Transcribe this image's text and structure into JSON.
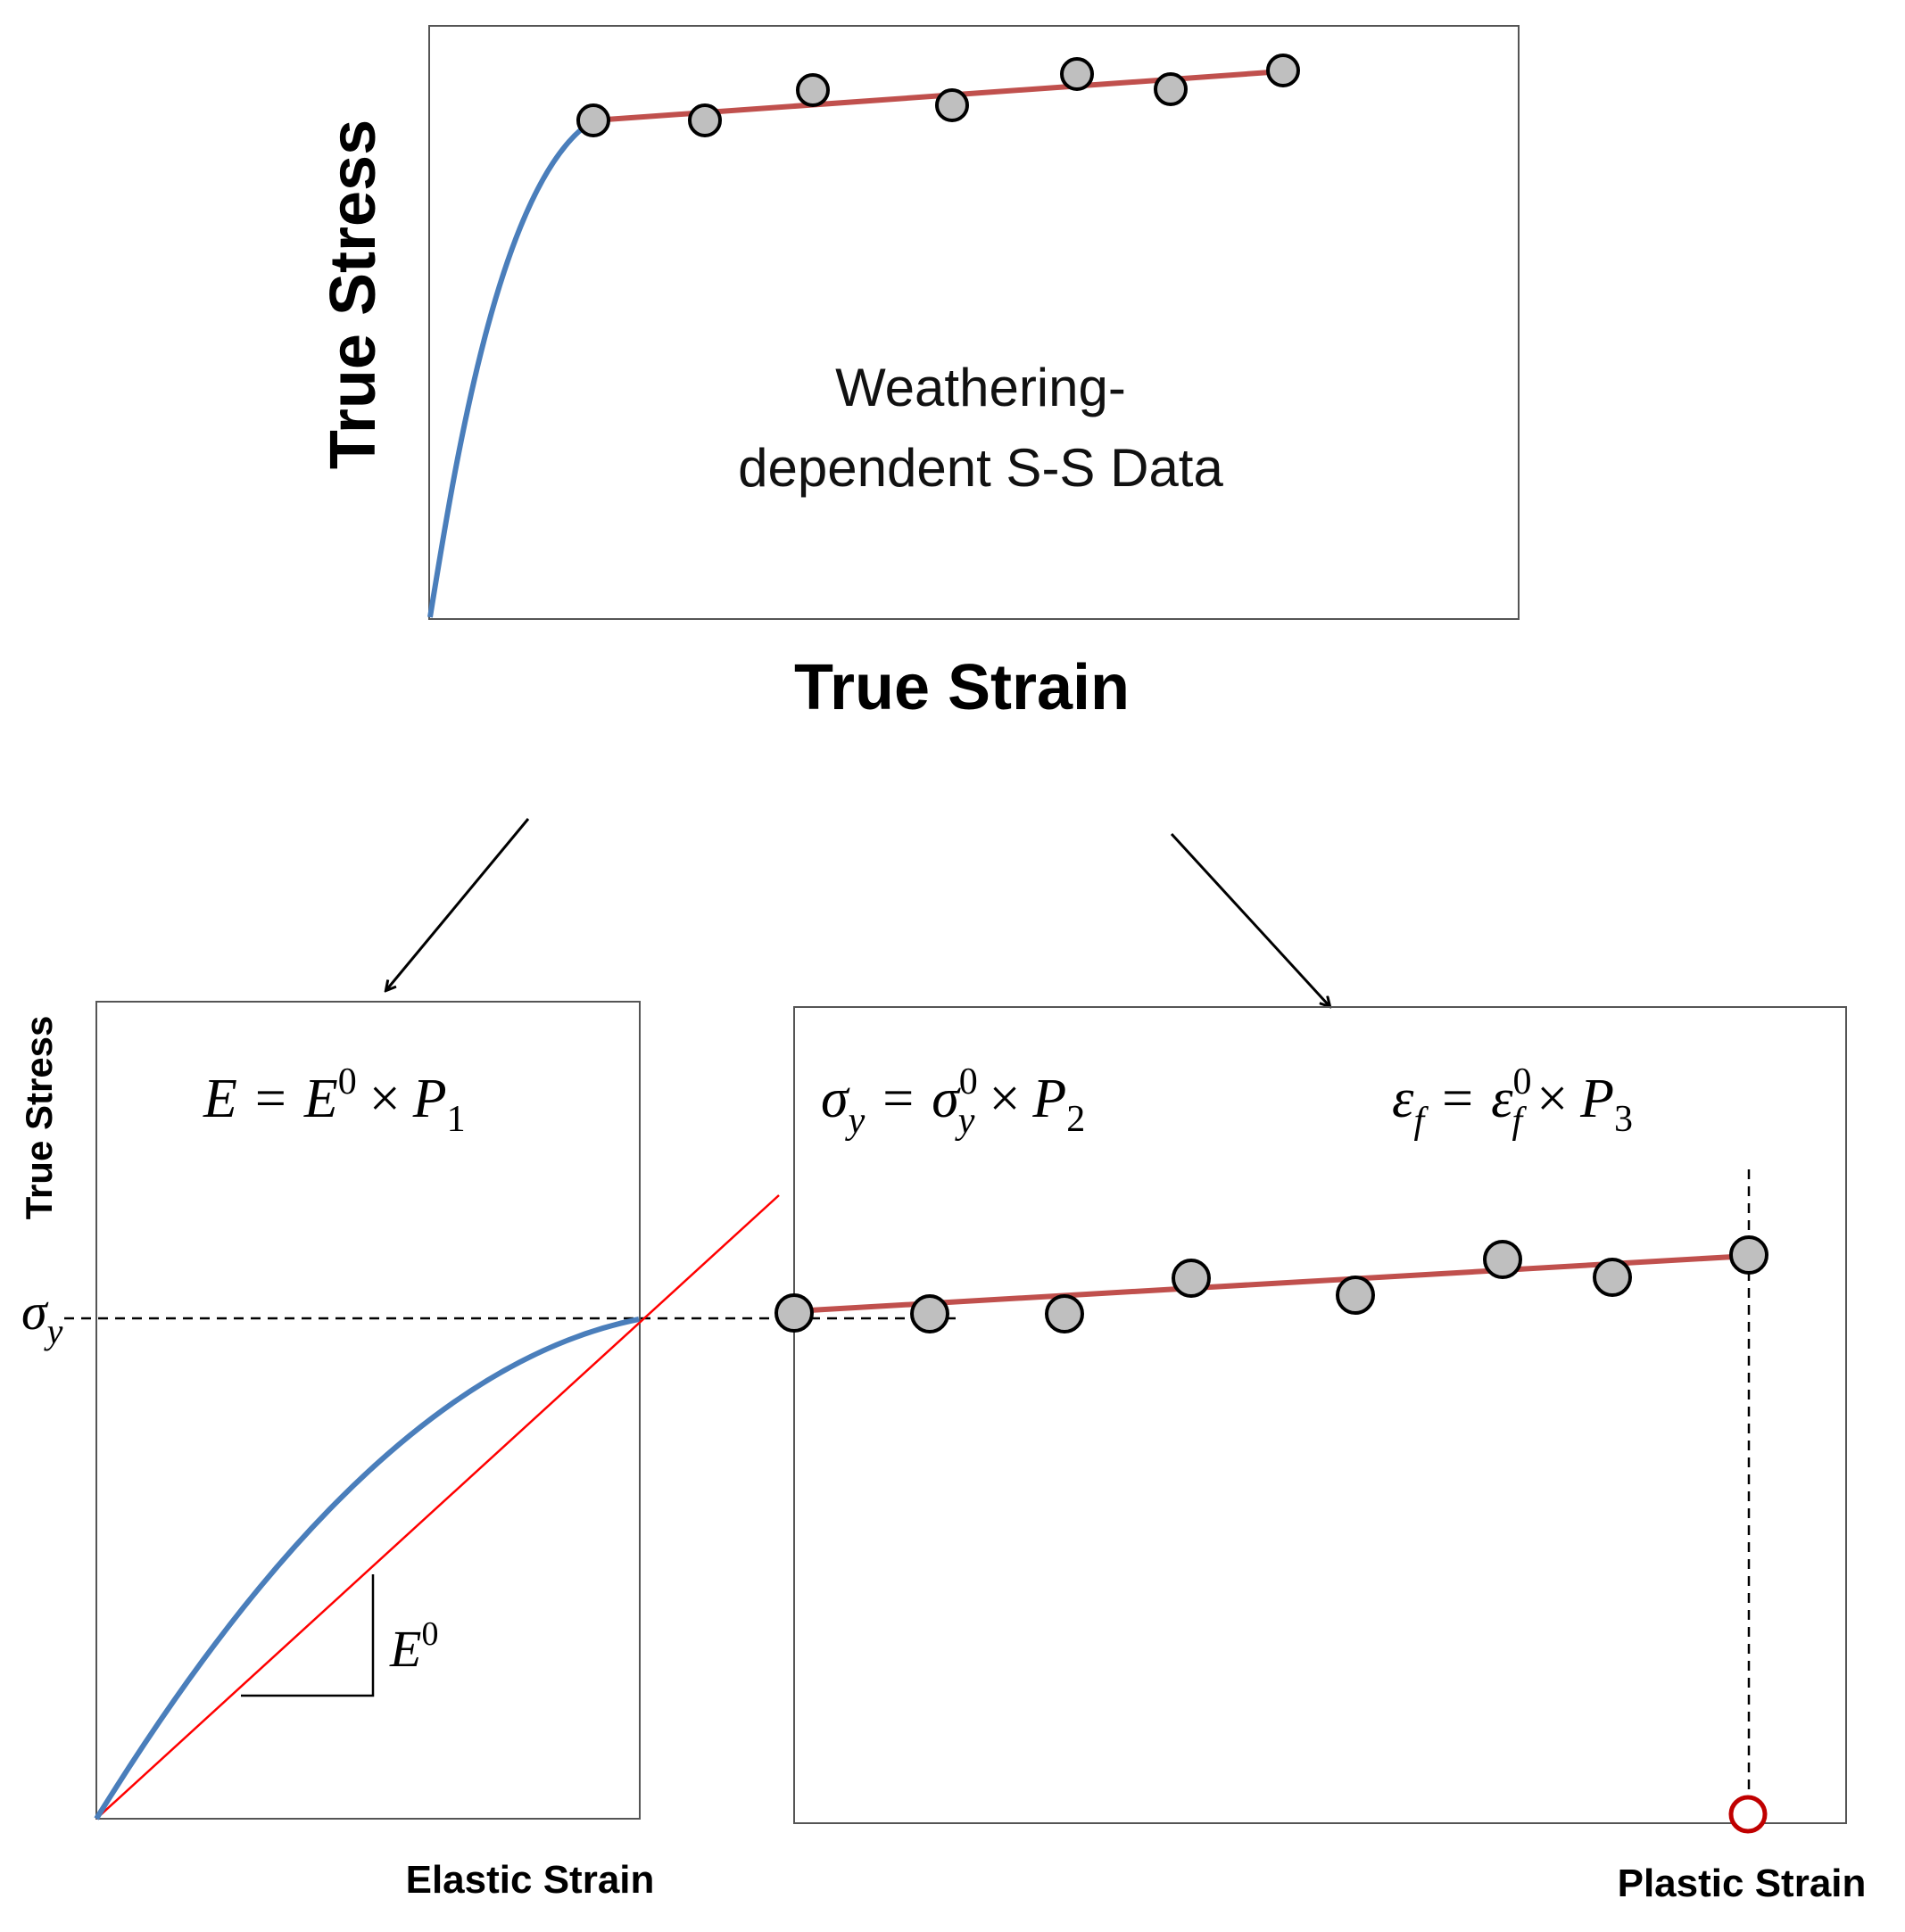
{
  "top_panel": {
    "y_label": "True Stress",
    "x_label": "True Strain",
    "caption_line1": "Weathering-",
    "caption_line2": "dependent S-S Data"
  },
  "left_panel": {
    "y_label": "True Stress",
    "x_label": "Elastic Strain",
    "sigma_y_marker": "σ",
    "sigma_y_sub": "y",
    "equation": {
      "lhs": "E",
      "eq": "=",
      "base": "E",
      "sup": "0",
      "times": "×",
      "param": "P",
      "sub": "1"
    },
    "slope_label": {
      "base": "E",
      "sup": "0"
    }
  },
  "right_panel": {
    "x_label": "Plastic Strain",
    "equation_sigma": {
      "lhs": "σ",
      "lhs_sub": "y",
      "eq": "=",
      "base": "σ",
      "sup": "0",
      "sub": "y",
      "times": "×",
      "param": "P",
      "param_sub": "2"
    },
    "equation_eps": {
      "lhs": "ε",
      "lhs_sub": "f",
      "eq": "=",
      "base": "ε",
      "sup": "0",
      "sub": "f",
      "times": "×",
      "param": "P",
      "param_sub": "3"
    }
  },
  "colors": {
    "elastic_curve": "#4a7ebb",
    "hardening_line": "#c0504d",
    "tangent_line": "#ff0000",
    "marker_fill": "#bfbfbf",
    "failure_marker": "#c00000",
    "frame": "#555555"
  },
  "icons": {
    "arrow": "arrow-down-icon",
    "marker": "circle-marker-icon"
  }
}
